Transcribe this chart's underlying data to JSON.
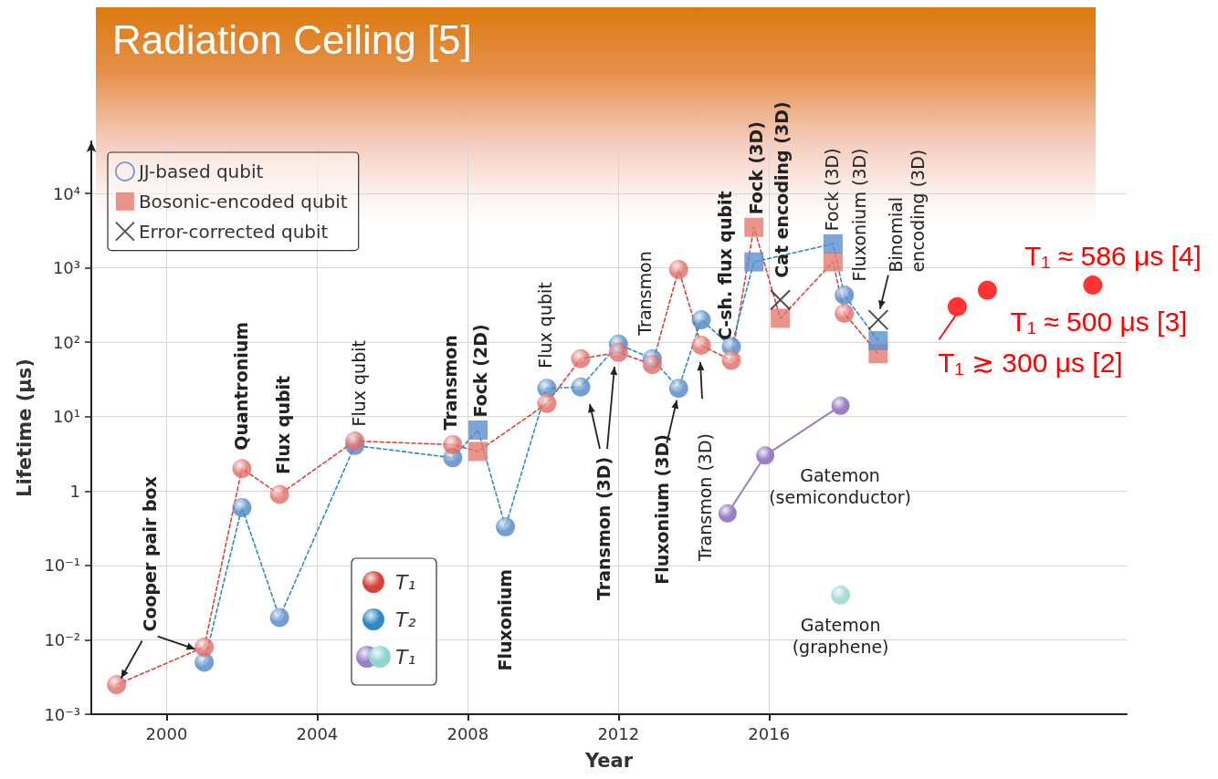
{
  "chart_data": {
    "type": "line",
    "title": "Radiation Ceiling [5]",
    "xlabel": "Year",
    "ylabel": "Lifetime (μs)",
    "log": "y",
    "grid": true,
    "legend": "top left",
    "xlim": [
      1998,
      2025.5
    ],
    "xticks": [
      2000,
      2004,
      2008,
      2012,
      2016
    ],
    "ylim": [
      0.001,
      50000
    ],
    "yticks": [
      {
        "value": 0.001,
        "label": "10⁻³"
      },
      {
        "value": 0.01,
        "label": "10⁻²"
      },
      {
        "value": 0.1,
        "label": "10⁻¹"
      },
      1,
      {
        "value": 10,
        "label": "10¹"
      },
      {
        "value": 100,
        "label": "10²"
      },
      {
        "value": 1000,
        "label": "10³"
      },
      {
        "value": 10000,
        "label": "10⁴"
      }
    ],
    "series": [
      {
        "name": "T₁",
        "color": "#d9423b",
        "line_style": "dashed",
        "marker": "none",
        "x": [
          1998.67,
          2001.0,
          2002.0,
          2003.0,
          2005.0,
          2007.6,
          2008.27,
          2010.1,
          2011.0,
          2012.0,
          2012.9,
          2013.6,
          2014.2,
          2015.0,
          2015.6,
          2016.3,
          2017.7,
          2018.0,
          2018.9
        ],
        "values": [
          0.0025,
          0.008,
          2,
          0.9,
          4.7,
          4.2,
          3.4,
          15,
          60,
          73,
          50,
          950,
          91,
          57,
          3500,
          210,
          1200,
          245,
          70
        ]
      },
      {
        "name": "T₂",
        "color": "#2f8ac4",
        "line_style": "dashed",
        "marker": "none",
        "x": [
          2001.0,
          2002.0,
          2003.0,
          2005.0,
          2007.6,
          2008.27,
          2009.0,
          2010.1,
          2011.0,
          2012.0,
          2012.9,
          2013.6,
          2014.2,
          2015.0,
          2015.6,
          2017.7,
          2018.0,
          2018.9
        ],
        "values": [
          0.005,
          0.6,
          0.02,
          4.1,
          2.8,
          6.6,
          0.33,
          24,
          25,
          94,
          60,
          24,
          200,
          87,
          1200,
          2100,
          430,
          105
        ]
      },
      {
        "name": "JJ-based qubit",
        "type": "scatter",
        "marker": "circle",
        "colors": [
          "#4f86c6",
          "#4f86c6",
          "#4f86c6",
          "#4f86c6",
          "#4f86c6",
          "#4f86c6",
          "#4f86c6",
          "#4f86c6",
          "#4f86c6",
          "#4f86c6",
          "#4f86c6",
          "#4f86c6",
          "#4f86c6",
          "#4f86c6",
          "#e06c66",
          "#e06c66",
          "#e06c66",
          "#e06c66",
          "#e06c66",
          "#e06c66",
          "#e06c66",
          "#e06c66",
          "#e06c66",
          "#e06c66",
          "#e06c66",
          "#e06c66",
          "#e06c66",
          "#e06c66"
        ],
        "x": [
          2001.0,
          2002.0,
          2003.0,
          2005.0,
          2007.6,
          2009.0,
          2010.1,
          2011.0,
          2012.0,
          2012.9,
          2013.6,
          2014.2,
          2015.0,
          2018.0,
          1998.67,
          2001.0,
          2002.0,
          2003.0,
          2005.0,
          2007.6,
          2010.1,
          2011.0,
          2012.0,
          2012.9,
          2013.6,
          2014.2,
          2015.0,
          2018.0
        ],
        "values": [
          0.005,
          0.6,
          0.02,
          4.1,
          2.8,
          0.33,
          24,
          25,
          94,
          60,
          24,
          200,
          87,
          430,
          0.0025,
          0.008,
          2,
          0.9,
          4.7,
          4.2,
          15,
          60,
          73,
          50,
          950,
          91,
          57,
          245
        ]
      },
      {
        "name": "Bosonic-encoded qubit",
        "type": "scatter",
        "marker": "square",
        "colors": [
          "#e57a6e",
          "#5b8fd0",
          "#e57a6e",
          "#5b8fd0",
          "#e57a6e",
          "#e57a6e",
          "#5b8fd0",
          "#e57a6e",
          "#5b8fd0"
        ],
        "x": [
          2008.27,
          2008.27,
          2015.6,
          2015.6,
          2016.3,
          2017.7,
          2017.7,
          2018.9,
          2018.9
        ],
        "values": [
          3.4,
          6.6,
          3500,
          1200,
          210,
          1200,
          2100,
          70,
          105
        ]
      },
      {
        "name": "Error-corrected qubit",
        "type": "scatter",
        "marker": "cross",
        "color": "#222222",
        "x": [
          2016.3,
          2018.9
        ],
        "values": [
          370,
          200
        ]
      },
      {
        "type": "scatter",
        "color": "#ff0000",
        "marker": "circle",
        "x": [
          2021.0,
          2021.8,
          2024.6
        ],
        "values": [
          300,
          500,
          586
        ]
      },
      {
        "name": "T₁",
        "color": "#9b7fc6",
        "line_style": "solid",
        "marker": "circle",
        "x": [
          2014.9,
          2015.9,
          2017.9
        ],
        "values": [
          0.5,
          3,
          14
        ]
      },
      {
        "type": "scatter",
        "color": "#8fd4cf",
        "marker": "circle",
        "x": [
          2017.9
        ],
        "values": [
          0.04
        ]
      }
    ],
    "annotations": [
      {
        "text": "Cooper pair box",
        "x": 1998.67,
        "y": 0.0025
      },
      {
        "text": "Quantronium",
        "x": 2002.0,
        "y": 2
      },
      {
        "text": "Flux qubit",
        "x": 2003.0,
        "y": 0.9
      },
      {
        "text": "Flux qubit",
        "x": 2005.0,
        "y": 4.7
      },
      {
        "text": "Transmon",
        "x": 2007.6,
        "y": 4.2
      },
      {
        "text": "Fock (2D)",
        "x": 2008.27,
        "y": 6.6
      },
      {
        "text": "Fluxonium",
        "x": 2009.0,
        "y": 0.33
      },
      "Transmon (3D)",
      {
        "text": "Fluxonium (3D)",
        "x": 2013.6,
        "y": 24
      },
      {
        "text": "Transmon",
        "x": 2012.9,
        "y": 50
      },
      "Transmon (3D)",
      {
        "text": "Flux qubit",
        "x": 2010.1,
        "y": 24
      },
      {
        "text": "C-sh. flux qubit",
        "x": 2015.0,
        "y": 57
      },
      {
        "text": "Fock (3D)",
        "x": 2015.6,
        "y": 3500
      },
      {
        "text": "Cat encoding (3D)",
        "x": 2016.3,
        "y": 370
      },
      {
        "text": "Fock (3D)",
        "x": 2017.7,
        "y": 2100
      },
      {
        "text": "Fluxonium (3D)",
        "x": 2018.0,
        "y": 430
      },
      {
        "text": "Binomial\nencoding (3D)",
        "x": 2018.9,
        "y": 200
      },
      "Gatemon\n(semiconductor)",
      {
        "text": "Gatemon\n(graphene)",
        "x": 2017.9,
        "y": 0.04
      },
      {
        "text": "T₁ ≈ 586 μs [4]",
        "x": 2024.6,
        "y": 586
      },
      {
        "text": "T₁ ≈ 500 μs [3]",
        "x": 2021.8,
        "y": 500
      },
      {
        "text": "T₁ ≳ 300 μs [2]",
        "x": 2021.0,
        "y": 300
      }
    ]
  }
}
